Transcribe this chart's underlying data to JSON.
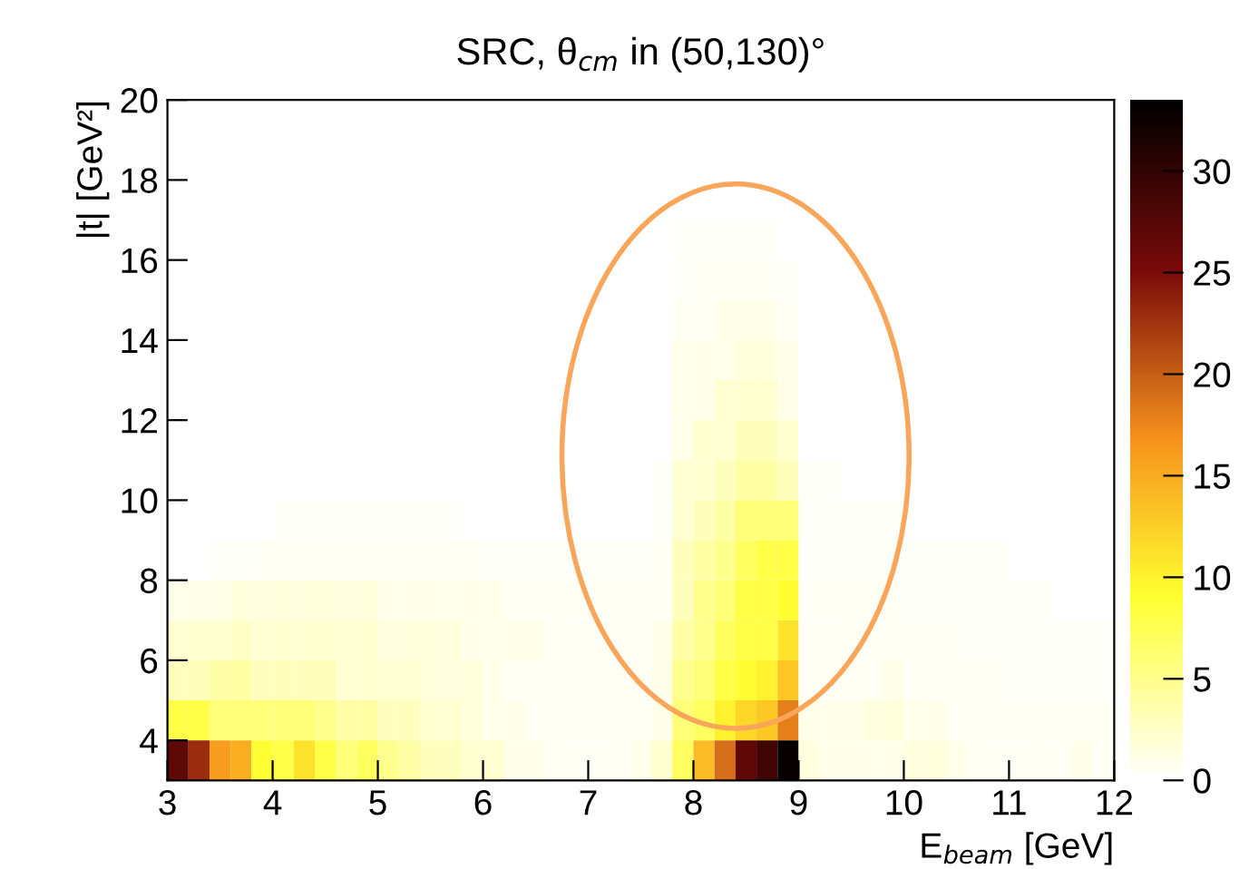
{
  "chart_data": {
    "type": "heatmap",
    "title": "SRC, θ$_{cm}$ in (50,130)°",
    "xlabel": "E$_{beam}$ [GeV]",
    "ylabel": "|t| [GeV²]",
    "xlim": [
      3,
      12
    ],
    "ylim": [
      3,
      20
    ],
    "xticks": [
      3,
      4,
      5,
      6,
      7,
      8,
      9,
      10,
      11,
      12
    ],
    "yticks": [
      4,
      6,
      8,
      10,
      12,
      14,
      16,
      18,
      20
    ],
    "clim": [
      0,
      33.5
    ],
    "cticks": [
      0,
      5,
      10,
      15,
      20,
      25,
      30
    ],
    "grid": false,
    "cells": [
      [
        0,
        0,
        0,
        0,
        0,
        0,
        0,
        0,
        0,
        0,
        0,
        0,
        0,
        0,
        0,
        0,
        0,
        0,
        0,
        0,
        0,
        0,
        0,
        0,
        0,
        0,
        0,
        0,
        0,
        0,
        0,
        0,
        0,
        0,
        0,
        0,
        0,
        0,
        0,
        0,
        0,
        0,
        0,
        0,
        0
      ],
      [
        0,
        0,
        0,
        0,
        0,
        0,
        0,
        0,
        0,
        0,
        0,
        0,
        0,
        0,
        0,
        0,
        0,
        0,
        0,
        0,
        0,
        0,
        0,
        0,
        0,
        0,
        0,
        0,
        0,
        0,
        0,
        0,
        0,
        0,
        0,
        0,
        0,
        0,
        0,
        0,
        0,
        0,
        0,
        0,
        0
      ],
      [
        0,
        0,
        0,
        0,
        0,
        0,
        0,
        0,
        0,
        0,
        0,
        0,
        0,
        0,
        0,
        0,
        0,
        0,
        0,
        0,
        0,
        0,
        0,
        0,
        0,
        0,
        0,
        0,
        0,
        0,
        0,
        0,
        0,
        0,
        0,
        0,
        0,
        0,
        0,
        0,
        0,
        0,
        0,
        0,
        0
      ],
      [
        0,
        0,
        0,
        0,
        0,
        0,
        0,
        0,
        0,
        0,
        0,
        0,
        0,
        0,
        0,
        0,
        0,
        0,
        0,
        0,
        0,
        0,
        0,
        0,
        0.3,
        0.3,
        0.3,
        0.3,
        0.3,
        0,
        0,
        0,
        0,
        0,
        0,
        0,
        0,
        0,
        0,
        0,
        0,
        0,
        0,
        0,
        0
      ],
      [
        0,
        0,
        0,
        0,
        0,
        0,
        0,
        0,
        0,
        0,
        0,
        0,
        0,
        0,
        0,
        0,
        0,
        0,
        0,
        0,
        0,
        0,
        0,
        0,
        0.3,
        0.5,
        0.5,
        0.5,
        0.5,
        0.3,
        0,
        0,
        0,
        0,
        0,
        0,
        0,
        0,
        0,
        0,
        0,
        0,
        0,
        0,
        0
      ],
      [
        0,
        0,
        0,
        0,
        0,
        0,
        0,
        0,
        0,
        0,
        0,
        0,
        0,
        0,
        0,
        0,
        0,
        0,
        0,
        0,
        0,
        0,
        0,
        0,
        0.5,
        0.5,
        1,
        1,
        1,
        0.5,
        0,
        0,
        0,
        0,
        0,
        0,
        0,
        0,
        0,
        0,
        0,
        0,
        0,
        0,
        0
      ],
      [
        0,
        0,
        0,
        0,
        0,
        0,
        0,
        0,
        0,
        0,
        0,
        0,
        0,
        0,
        0,
        0,
        0,
        0,
        0,
        0,
        0,
        0,
        0,
        0,
        1,
        1,
        1,
        1.5,
        1.5,
        1,
        0,
        0,
        0,
        0,
        0,
        0,
        0,
        0,
        0,
        0,
        0,
        0,
        0,
        0,
        0
      ],
      [
        0,
        0,
        0,
        0,
        0,
        0,
        0,
        0,
        0,
        0,
        0,
        0,
        0,
        0,
        0,
        0,
        0,
        0,
        0,
        0,
        0,
        0,
        0,
        0,
        1,
        1,
        2,
        2,
        2,
        1,
        0,
        0,
        0,
        0,
        0,
        0,
        0,
        0,
        0,
        0,
        0,
        0,
        0,
        0,
        0
      ],
      [
        0,
        0,
        0,
        0,
        0,
        0,
        0,
        0,
        0,
        0,
        0,
        0,
        0,
        0,
        0,
        0,
        0,
        0,
        0,
        0,
        0,
        0,
        0,
        0,
        1,
        2,
        2,
        3,
        3,
        2,
        0,
        0,
        0,
        0,
        0,
        0,
        0,
        0,
        0,
        0,
        0,
        0,
        0,
        0,
        0
      ],
      [
        0,
        0,
        0,
        0,
        0,
        0,
        0,
        0,
        0,
        0,
        0,
        0,
        0,
        0,
        0,
        0,
        0,
        0,
        0,
        0,
        0,
        0,
        0,
        0.3,
        2,
        2,
        3,
        4,
        4,
        3,
        0.3,
        0.3,
        0,
        0,
        0,
        0,
        0,
        0,
        0,
        0,
        0,
        0,
        0,
        0,
        0
      ],
      [
        0,
        0,
        0,
        0,
        0,
        0.3,
        0.3,
        0.3,
        0.3,
        0.3,
        0.3,
        0.3,
        0.3,
        0.3,
        0,
        0,
        0,
        0,
        0,
        0,
        0,
        0,
        0,
        0.3,
        2,
        3,
        4,
        6,
        6,
        6,
        0.3,
        0.3,
        0.3,
        0.3,
        0.3,
        0,
        0,
        0,
        0,
        0,
        0,
        0,
        0,
        0,
        0
      ],
      [
        0,
        0,
        0.3,
        0.3,
        0.5,
        0.5,
        0.5,
        0.5,
        0.5,
        0.5,
        0.5,
        0.5,
        0.5,
        0.5,
        0.5,
        0.3,
        0.3,
        0.3,
        0.3,
        0.3,
        0.3,
        0.3,
        0.3,
        0.5,
        3,
        4,
        5,
        7,
        8,
        8,
        0.3,
        0.3,
        0.3,
        0.3,
        0.3,
        0.3,
        0.3,
        0.3,
        0.3,
        0.3,
        0,
        0,
        0,
        0,
        0
      ],
      [
        1,
        1,
        1,
        1.5,
        1.5,
        1.5,
        1.5,
        1.5,
        1.5,
        1.5,
        1,
        1,
        1,
        1,
        1,
        1,
        0.5,
        0.5,
        0.5,
        0.5,
        0.5,
        0.5,
        0.5,
        0.5,
        3,
        5,
        6,
        8,
        8,
        9,
        0.5,
        0.5,
        0.5,
        0.5,
        0.5,
        0.3,
        0.3,
        0.3,
        0.3,
        0.3,
        0.3,
        0.3,
        0,
        0,
        0
      ],
      [
        2,
        2,
        2,
        2.5,
        2,
        2,
        2,
        2,
        2,
        2,
        1.5,
        1.5,
        1.5,
        1.5,
        1,
        1,
        1,
        1,
        0.5,
        0.5,
        0.5,
        0.5,
        0.5,
        1,
        4,
        5,
        7,
        8,
        8,
        11,
        0.5,
        0.5,
        0.5,
        0.5,
        0.5,
        0.5,
        0.5,
        0.5,
        0.3,
        0.3,
        0.3,
        0.3,
        0.3,
        0.3,
        0.3
      ],
      [
        3,
        3,
        4,
        4,
        3,
        3,
        3,
        3,
        2,
        2,
        2,
        2,
        1.5,
        1.5,
        1.5,
        1,
        0.5,
        0.5,
        0.5,
        0.5,
        0.5,
        0.5,
        0.5,
        1,
        5,
        6,
        8,
        9,
        10,
        13,
        0.5,
        0.5,
        0.5,
        0.5,
        1,
        0.5,
        0.5,
        0.5,
        0.5,
        0.5,
        0.3,
        0.3,
        0.3,
        0.3,
        0.3
      ],
      [
        8,
        8,
        6,
        6,
        6,
        6,
        6,
        5,
        4,
        4,
        3,
        3,
        2,
        2,
        1.5,
        1,
        1,
        0.5,
        0.5,
        0.5,
        0.5,
        0.5,
        0.5,
        1,
        6,
        7,
        10,
        12,
        13,
        18,
        1,
        1,
        1,
        1.5,
        1.5,
        1,
        1,
        0.5,
        0.5,
        0.5,
        0.5,
        0.5,
        0.5,
        0.5,
        0.5
      ],
      [
        27,
        23,
        16,
        15,
        9,
        8,
        11,
        8,
        6,
        7,
        5,
        4,
        3,
        3,
        2,
        2,
        1,
        1,
        0.5,
        0.5,
        0.5,
        0.5,
        1,
        2,
        7,
        14,
        19,
        27,
        29,
        33,
        1.5,
        1,
        1,
        1,
        1,
        1.5,
        1.5,
        1,
        0.5,
        0.5,
        0.5,
        0.5,
        0.5,
        1,
        0.5
      ]
    ]
  }
}
